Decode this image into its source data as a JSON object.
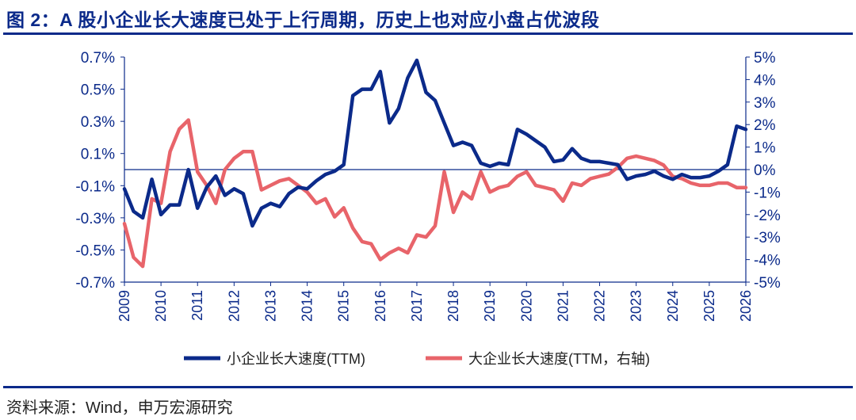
{
  "title": "图 2：A 股小企业长大速度已处于上行周期，历史上也对应小盘占优波段",
  "source": "资料来源：Wind，申万宏源研究",
  "colors": {
    "title": "#0b2a8a",
    "small": "#0b2a8a",
    "large": "#e8646a",
    "axis": "#0b2a8a",
    "text": "#0b2a8a"
  },
  "chart_data": {
    "type": "line",
    "xlabel": "",
    "ylabel_left": "",
    "ylabel_right": "",
    "x_ticks": [
      "2009",
      "2010",
      "2011",
      "2012",
      "2013",
      "2014",
      "2015",
      "2016",
      "2017",
      "2018",
      "2019",
      "2020",
      "2021",
      "2022",
      "2023",
      "2024",
      "2025",
      "2026"
    ],
    "x_range": [
      2009,
      2026
    ],
    "ylim_left": [
      -0.7,
      0.7
    ],
    "ylim_right": [
      -5,
      5
    ],
    "left_ticks": [
      "0.7%",
      "0.5%",
      "0.3%",
      "0.1%",
      "-0.1%",
      "-0.3%",
      "-0.5%",
      "-0.7%"
    ],
    "left_tick_values": [
      0.7,
      0.5,
      0.3,
      0.1,
      -0.1,
      -0.3,
      -0.5,
      -0.7
    ],
    "right_ticks": [
      "5%",
      "4%",
      "3%",
      "2%",
      "1%",
      "0%",
      "-1%",
      "-2%",
      "-3%",
      "-4%",
      "-5%"
    ],
    "right_tick_values": [
      5,
      4,
      3,
      2,
      1,
      0,
      -1,
      -2,
      -3,
      -4,
      -5
    ],
    "zero_line": true,
    "grid": false,
    "legend_placement": "bottom",
    "series": [
      {
        "name": "小企业长大速度(TTM)",
        "axis": "left",
        "x": [
          2009.0,
          2009.25,
          2009.5,
          2009.75,
          2010.0,
          2010.25,
          2010.5,
          2010.75,
          2011.0,
          2011.25,
          2011.5,
          2011.75,
          2012.0,
          2012.25,
          2012.5,
          2012.75,
          2013.0,
          2013.25,
          2013.5,
          2013.75,
          2014.0,
          2014.25,
          2014.5,
          2014.75,
          2015.0,
          2015.25,
          2015.5,
          2015.75,
          2016.0,
          2016.25,
          2016.5,
          2016.75,
          2017.0,
          2017.25,
          2017.5,
          2017.75,
          2018.0,
          2018.25,
          2018.5,
          2018.75,
          2019.0,
          2019.25,
          2019.5,
          2019.75,
          2020.0,
          2020.25,
          2020.5,
          2020.75,
          2021.0,
          2021.25,
          2021.5,
          2021.75,
          2022.0,
          2022.25,
          2022.5,
          2022.75,
          2023.0,
          2023.25,
          2023.5,
          2023.75,
          2024.0,
          2024.25,
          2024.5,
          2024.75,
          2025.0,
          2025.25,
          2025.5,
          2025.75,
          2026.0
        ],
        "values": [
          -0.12,
          -0.26,
          -0.3,
          -0.06,
          -0.28,
          -0.22,
          -0.22,
          0.0,
          -0.24,
          -0.11,
          -0.04,
          -0.16,
          -0.12,
          -0.15,
          -0.35,
          -0.24,
          -0.21,
          -0.23,
          -0.15,
          -0.11,
          -0.12,
          -0.07,
          -0.03,
          -0.01,
          0.03,
          0.46,
          0.5,
          0.5,
          0.61,
          0.29,
          0.38,
          0.57,
          0.68,
          0.48,
          0.43,
          0.29,
          0.15,
          0.17,
          0.15,
          0.04,
          0.02,
          0.04,
          0.03,
          0.25,
          0.22,
          0.18,
          0.14,
          0.05,
          0.06,
          0.13,
          0.07,
          0.05,
          0.05,
          0.04,
          0.03,
          -0.06,
          -0.04,
          -0.03,
          -0.01,
          -0.04,
          -0.06,
          -0.03,
          -0.05,
          -0.05,
          -0.04,
          -0.01,
          0.03,
          0.27,
          0.25
        ]
      },
      {
        "name": "大企业长大速度(TTM，右轴)",
        "axis": "right",
        "x": [
          2009.0,
          2009.25,
          2009.5,
          2009.75,
          2010.0,
          2010.25,
          2010.5,
          2010.75,
          2011.0,
          2011.25,
          2011.5,
          2011.75,
          2012.0,
          2012.25,
          2012.5,
          2012.75,
          2013.0,
          2013.25,
          2013.5,
          2013.75,
          2014.0,
          2014.25,
          2014.5,
          2014.75,
          2015.0,
          2015.25,
          2015.5,
          2015.75,
          2016.0,
          2016.25,
          2016.5,
          2016.75,
          2017.0,
          2017.25,
          2017.5,
          2017.75,
          2018.0,
          2018.25,
          2018.5,
          2018.75,
          2019.0,
          2019.25,
          2019.5,
          2019.75,
          2020.0,
          2020.25,
          2020.5,
          2020.75,
          2021.0,
          2021.25,
          2021.5,
          2021.75,
          2022.0,
          2022.25,
          2022.5,
          2022.75,
          2023.0,
          2023.25,
          2023.5,
          2023.75,
          2024.0,
          2024.25,
          2024.5,
          2024.75,
          2025.0,
          2025.25,
          2025.5,
          2025.75,
          2026.0
        ],
        "values": [
          -2.4,
          -3.9,
          -4.3,
          -1.3,
          -1.5,
          0.8,
          1.8,
          2.2,
          -0.1,
          -0.7,
          -1.5,
          0.0,
          0.5,
          0.8,
          0.8,
          -0.9,
          -0.7,
          -0.5,
          -0.4,
          -0.7,
          -1.0,
          -1.5,
          -1.3,
          -2.1,
          -1.7,
          -2.6,
          -3.2,
          -3.3,
          -4.0,
          -3.7,
          -3.5,
          -3.7,
          -2.9,
          -3.0,
          -2.5,
          -0.1,
          -1.9,
          -1.0,
          -1.3,
          -0.1,
          -1.0,
          -0.8,
          -0.7,
          -0.3,
          -0.1,
          -0.7,
          -0.8,
          -0.9,
          -1.4,
          -0.6,
          -0.7,
          -0.4,
          -0.3,
          -0.2,
          0.1,
          0.5,
          0.6,
          0.5,
          0.4,
          0.2,
          -0.3,
          -0.4,
          -0.6,
          -0.7,
          -0.7,
          -0.6,
          -0.6,
          -0.8,
          -0.8
        ]
      }
    ]
  }
}
